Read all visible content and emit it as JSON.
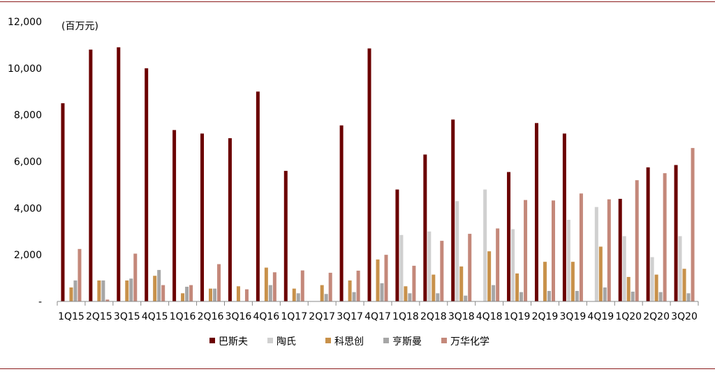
{
  "chart_data": {
    "type": "bar",
    "unit_label": "(百万元)",
    "categories": [
      "1Q15",
      "2Q15",
      "3Q15",
      "4Q15",
      "1Q16",
      "2Q16",
      "3Q16",
      "4Q16",
      "1Q17",
      "2Q17",
      "3Q17",
      "4Q17",
      "1Q18",
      "2Q18",
      "3Q18",
      "4Q18",
      "1Q19",
      "2Q19",
      "3Q19",
      "4Q19",
      "1Q20",
      "2Q20",
      "3Q20"
    ],
    "yticks": [
      "-",
      "2,000",
      "4,000",
      "6,000",
      "8,000",
      "10,000",
      "12,000"
    ],
    "ylim": [
      0,
      12000
    ],
    "legend_position": "bottom",
    "series": [
      {
        "name": "巴斯夫",
        "color": "#6b0000",
        "values": [
          8500,
          10800,
          10900,
          10000,
          7350,
          7200,
          7000,
          9000,
          5600,
          null,
          7550,
          10850,
          4800,
          6300,
          7800,
          null,
          5550,
          7650,
          7200,
          null,
          4400,
          5750,
          5850
        ]
      },
      {
        "name": "陶氏",
        "color": "#d0d0d0",
        "values": [
          null,
          null,
          null,
          null,
          null,
          null,
          null,
          null,
          null,
          null,
          null,
          null,
          2850,
          3000,
          4300,
          4800,
          3100,
          null,
          3500,
          4050,
          2800,
          1900,
          2800
        ]
      },
      {
        "name": "科思创",
        "color": "#c8914a",
        "values": [
          600,
          900,
          900,
          1100,
          350,
          550,
          650,
          1450,
          550,
          700,
          900,
          1800,
          650,
          1150,
          1500,
          2150,
          1200,
          1700,
          1700,
          2350,
          1050,
          1150,
          1400
        ]
      },
      {
        "name": "亨斯曼",
        "color": "#a6a6a6",
        "values": [
          900,
          900,
          980,
          1350,
          630,
          550,
          null,
          700,
          350,
          320,
          400,
          780,
          350,
          350,
          250,
          700,
          400,
          450,
          450,
          600,
          420,
          400,
          350
        ]
      },
      {
        "name": "万华化学",
        "color": "#c4887a",
        "values": [
          2250,
          80,
          2050,
          700,
          700,
          1600,
          520,
          1250,
          1330,
          1230,
          1320,
          2000,
          1530,
          2600,
          2900,
          3130,
          4350,
          4330,
          4630,
          4380,
          5200,
          5500,
          6580
        ]
      }
    ]
  }
}
